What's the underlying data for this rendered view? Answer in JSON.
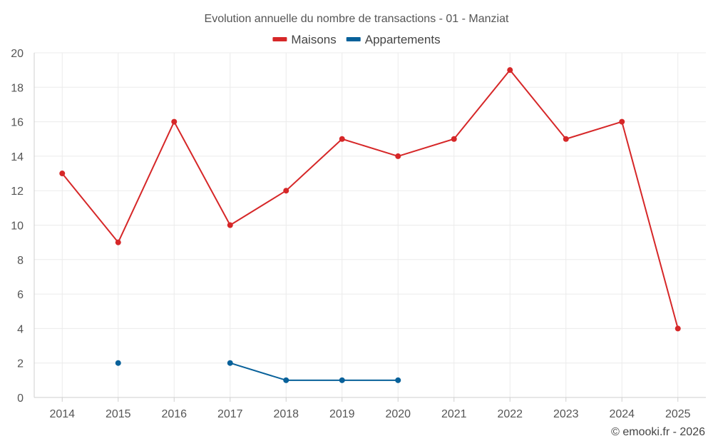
{
  "chart_data": {
    "type": "line",
    "title": "Evolution annuelle du nombre de transactions - 01 - Manziat",
    "categories": [
      "2014",
      "2015",
      "2016",
      "2017",
      "2018",
      "2019",
      "2020",
      "2021",
      "2022",
      "2023",
      "2024",
      "2025"
    ],
    "series": [
      {
        "name": "Maisons",
        "color": "#d62728",
        "values": [
          13,
          9,
          16,
          10,
          12,
          15,
          14,
          15,
          19,
          15,
          16,
          4
        ]
      },
      {
        "name": "Appartements",
        "color": "#08619a",
        "values": [
          null,
          2,
          null,
          2,
          1,
          1,
          1,
          null,
          null,
          null,
          null,
          null
        ]
      }
    ],
    "ylim": [
      0,
      20
    ],
    "yticks": [
      0,
      2,
      4,
      6,
      8,
      10,
      12,
      14,
      16,
      18,
      20
    ],
    "xlabel": "",
    "ylabel": "",
    "grid": true,
    "legend_position": "top-center",
    "credit": "© emooki.fr - 2026"
  }
}
